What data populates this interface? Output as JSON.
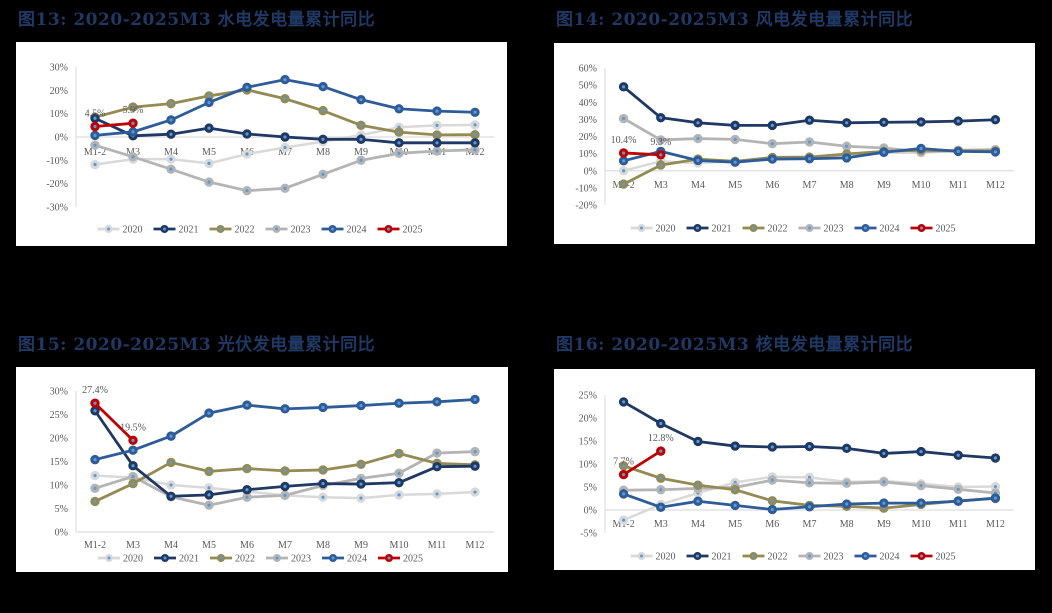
{
  "figures": [
    {
      "id": "fig13",
      "title": "图13:  2020-2025M3 水电发电量累计同比"
    },
    {
      "id": "fig14",
      "title": "图14:  2020-2025M3 风电发电量累计同比"
    },
    {
      "id": "fig15",
      "title": "图15:  2020-2025M3 光伏发电量累计同比"
    },
    {
      "id": "fig16",
      "title": "图16:  2020-2025M3 核电发电量累计同比"
    }
  ],
  "series_colors": {
    "2020": "#d9d9d9",
    "2021": "#1f3864",
    "2022": "#948a54",
    "2023": "#b4b4b4",
    "2024": "#2e5c99",
    "2025": "#c00000"
  },
  "chart_data": [
    {
      "type": "line",
      "title": "图13: 2020-2025M3 水电发电量累计同比",
      "categories": [
        "M1-2",
        "M3",
        "M4",
        "M5",
        "M6",
        "M7",
        "M8",
        "M9",
        "M10",
        "M11",
        "M12"
      ],
      "ylim": [
        -30,
        30
      ],
      "ystep": 10,
      "yticks": [
        "30%",
        "20%",
        "10%",
        "0%",
        "-10%",
        "-20%",
        "-30%"
      ],
      "xlabel": "",
      "ylabel": "",
      "legend_position": "bottom",
      "grid": false,
      "series": [
        {
          "name": "2020",
          "values": [
            -11.8,
            -9.5,
            -9.5,
            -11.3,
            -7.3,
            -4.5,
            -2.0,
            0.8,
            4.2,
            5.0,
            5.2
          ]
        },
        {
          "name": "2021",
          "values": [
            8.0,
            0.5,
            1.2,
            3.8,
            1.3,
            0.0,
            -1.0,
            -1.0,
            -2.5,
            -2.5,
            -2.5
          ]
        },
        {
          "name": "2022",
          "values": [
            8.5,
            12.8,
            14.3,
            17.6,
            20.2,
            16.4,
            11.3,
            5.0,
            2.1,
            0.9,
            1.0
          ]
        },
        {
          "name": "2023",
          "values": [
            -3.5,
            -8.5,
            -13.8,
            -19.3,
            -23.0,
            -22.0,
            -16.0,
            -10.0,
            -7.0,
            -6.0,
            -5.5
          ]
        },
        {
          "name": "2024",
          "values": [
            0.7,
            2.2,
            7.3,
            14.8,
            21.3,
            24.6,
            21.6,
            16.0,
            12.1,
            11.1,
            10.6
          ]
        },
        {
          "name": "2025",
          "values": [
            4.5,
            5.9
          ]
        }
      ],
      "annotations": [
        {
          "text": "4.5%",
          "series": "2025",
          "index": 0
        },
        {
          "text": "5.9%",
          "series": "2025",
          "index": 1
        }
      ]
    },
    {
      "type": "line",
      "title": "图14: 2020-2025M3 风电发电量累计同比",
      "categories": [
        "M1-2",
        "M3",
        "M4",
        "M5",
        "M6",
        "M7",
        "M8",
        "M9",
        "M10",
        "M11",
        "M12"
      ],
      "ylim": [
        -20,
        60
      ],
      "ystep": 10,
      "yticks": [
        "60%",
        "50%",
        "40%",
        "30%",
        "20%",
        "10%",
        "0%",
        "-10%",
        "-20%"
      ],
      "xlabel": "",
      "ylabel": "",
      "legend_position": "bottom",
      "grid": false,
      "series": [
        {
          "name": "2020",
          "values": [
            0.0,
            5.5,
            4.5,
            5.5,
            7.5,
            7.5,
            8.0,
            10.5,
            10.5,
            11.5,
            11.5
          ]
        },
        {
          "name": "2021",
          "values": [
            49.0,
            31.0,
            28.0,
            26.5,
            26.5,
            29.5,
            28.0,
            28.3,
            28.5,
            29.0,
            29.8
          ]
        },
        {
          "name": "2022",
          "values": [
            -7.8,
            3.3,
            6.8,
            5.5,
            7.8,
            8.0,
            9.8,
            11.3,
            12.0,
            11.5,
            11.5
          ]
        },
        {
          "name": "2023",
          "values": [
            30.5,
            18.0,
            18.8,
            18.3,
            15.8,
            16.8,
            14.3,
            13.3,
            11.0,
            12.0,
            12.3
          ]
        },
        {
          "name": "2024",
          "values": [
            5.8,
            11.3,
            6.0,
            5.0,
            6.8,
            7.0,
            7.5,
            10.8,
            13.0,
            11.3,
            11.0
          ]
        },
        {
          "name": "2025",
          "values": [
            10.4,
            9.3
          ]
        }
      ],
      "annotations": [
        {
          "text": "10.4%",
          "series": "2025",
          "index": 0
        },
        {
          "text": "9.3%",
          "series": "2025",
          "index": 1
        }
      ]
    },
    {
      "type": "line",
      "title": "图15: 2020-2025M3 光伏发电量累计同比",
      "categories": [
        "M1-2",
        "M3",
        "M4",
        "M5",
        "M6",
        "M7",
        "M8",
        "M9",
        "M10",
        "M11",
        "M12"
      ],
      "ylim": [
        0,
        30
      ],
      "ystep": 5,
      "yticks": [
        "30%",
        "25%",
        "20%",
        "15%",
        "10%",
        "5%",
        "0%"
      ],
      "xlabel": "",
      "ylabel": "",
      "legend_position": "bottom",
      "grid": false,
      "series": [
        {
          "name": "2020",
          "values": [
            12.0,
            11.6,
            10.0,
            9.4,
            8.6,
            7.8,
            7.4,
            7.2,
            7.9,
            8.1,
            8.5
          ]
        },
        {
          "name": "2021",
          "values": [
            25.8,
            14.1,
            7.6,
            7.9,
            9.0,
            9.7,
            10.3,
            10.2,
            10.5,
            13.9,
            14.0
          ]
        },
        {
          "name": "2022",
          "values": [
            6.5,
            10.3,
            14.8,
            12.9,
            13.5,
            13.0,
            13.2,
            14.4,
            16.7,
            14.6,
            14.3
          ]
        },
        {
          "name": "2023",
          "values": [
            9.3,
            11.8,
            7.5,
            5.7,
            7.4,
            7.8,
            9.9,
            11.4,
            12.5,
            16.8,
            17.1
          ]
        },
        {
          "name": "2024",
          "values": [
            15.4,
            17.4,
            20.4,
            25.3,
            27.0,
            26.2,
            26.5,
            26.9,
            27.4,
            27.7,
            28.2
          ]
        },
        {
          "name": "2025",
          "values": [
            27.4,
            19.5
          ]
        }
      ],
      "annotations": [
        {
          "text": "27.4%",
          "series": "2025",
          "index": 0
        },
        {
          "text": "19.5%",
          "series": "2025",
          "index": 1
        }
      ]
    },
    {
      "type": "line",
      "title": "图16: 2020-2025M3 核电发电量累计同比",
      "categories": [
        "M1-2",
        "M3",
        "M4",
        "M5",
        "M6",
        "M7",
        "M8",
        "M9",
        "M10",
        "M11",
        "M12"
      ],
      "ylim": [
        -5,
        25
      ],
      "ystep": 5,
      "yticks": [
        "25%",
        "20%",
        "15%",
        "10%",
        "5%",
        "0%",
        "-5%"
      ],
      "xlabel": "",
      "ylabel": "",
      "legend_position": "bottom",
      "grid": false,
      "series": [
        {
          "name": "2020",
          "values": [
            -2.2,
            1.2,
            3.7,
            6.0,
            7.2,
            7.1,
            6.1,
            6.3,
            5.7,
            5.0,
            5.1
          ]
        },
        {
          "name": "2021",
          "values": [
            23.5,
            18.8,
            14.9,
            13.9,
            13.7,
            13.8,
            13.4,
            12.3,
            12.7,
            11.9,
            11.3
          ]
        },
        {
          "name": "2022",
          "values": [
            9.6,
            6.9,
            5.4,
            4.4,
            2.0,
            1.0,
            0.8,
            0.4,
            1.2,
            2.0,
            2.5
          ]
        },
        {
          "name": "2023",
          "values": [
            4.3,
            4.4,
            4.7,
            4.9,
            6.5,
            5.9,
            5.8,
            6.1,
            5.3,
            4.5,
            3.7
          ]
        },
        {
          "name": "2024",
          "values": [
            3.5,
            0.6,
            1.9,
            1.0,
            0.1,
            0.7,
            1.3,
            1.5,
            1.5,
            1.9,
            2.6
          ]
        },
        {
          "name": "2025",
          "values": [
            7.7,
            12.8
          ]
        }
      ],
      "annotations": [
        {
          "text": "7.7%",
          "series": "2025",
          "index": 0
        },
        {
          "text": "12.8%",
          "series": "2025",
          "index": 1
        }
      ]
    }
  ]
}
